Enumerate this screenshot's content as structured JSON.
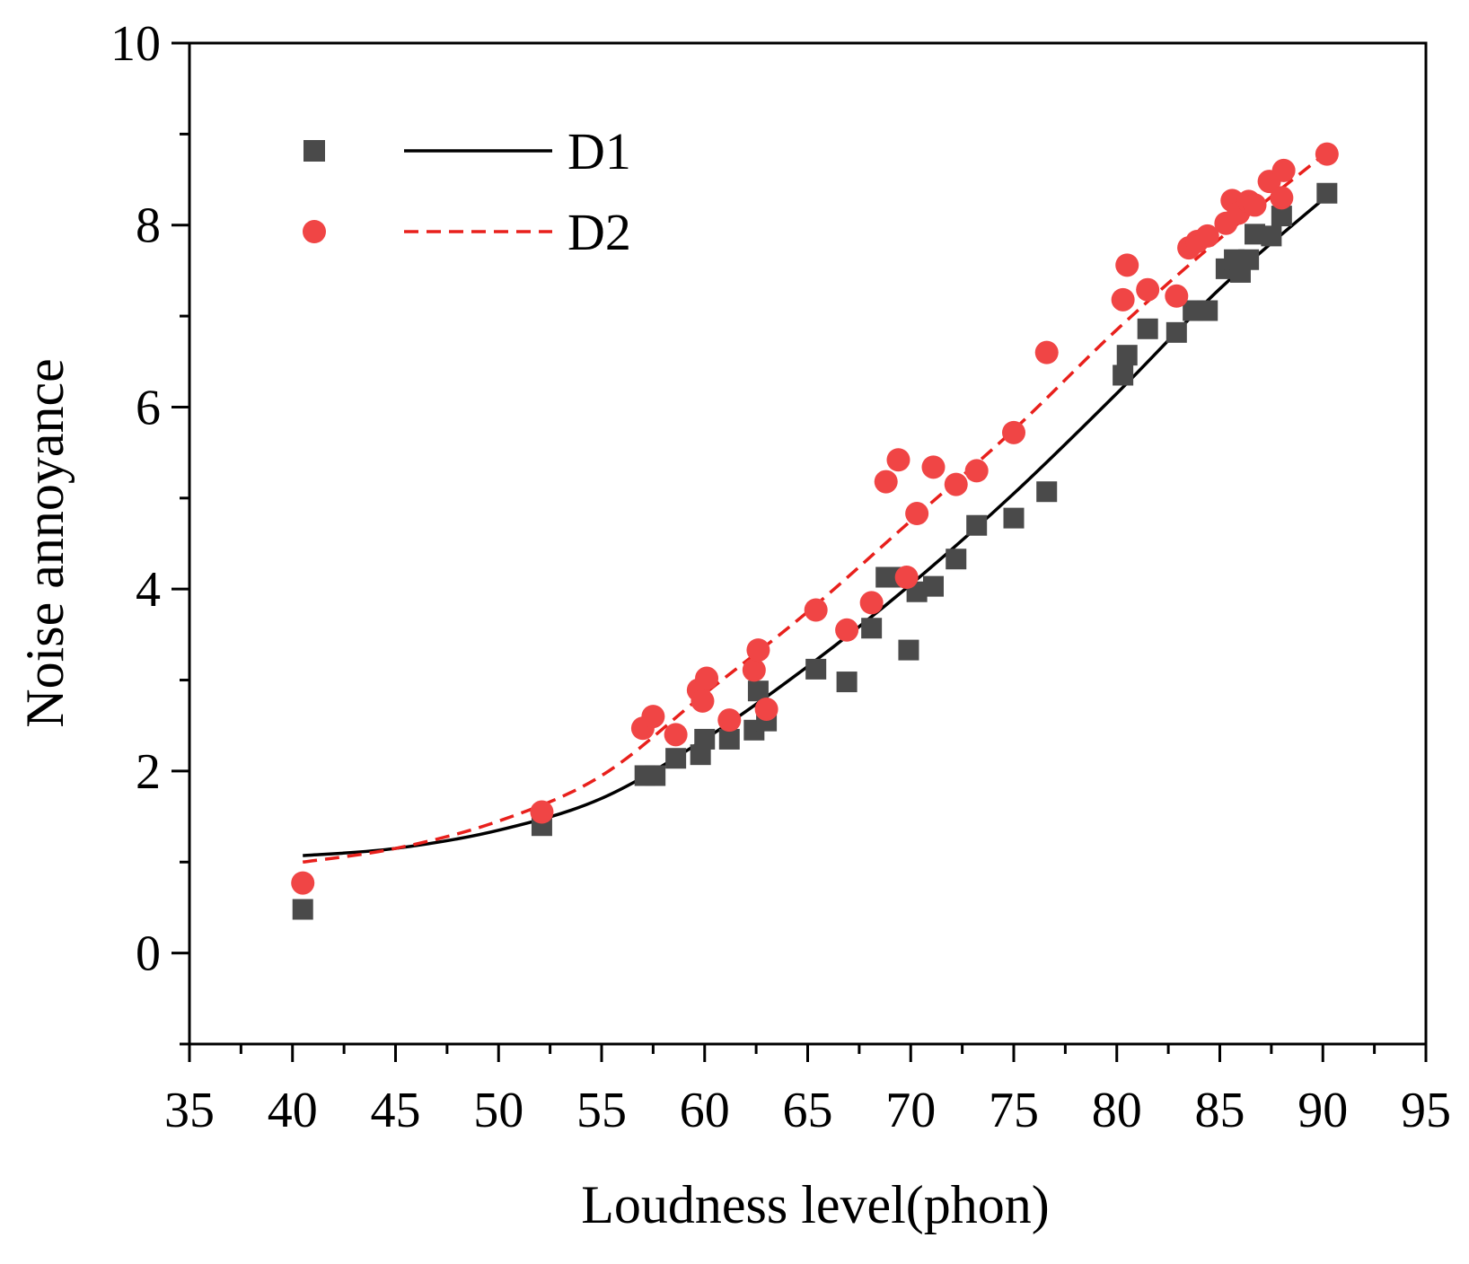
{
  "chart_data": {
    "type": "scatter",
    "title": "",
    "xlabel": "Loudness level(phon)",
    "ylabel": "Noise annoyance",
    "xlim": [
      35,
      95
    ],
    "ylim": [
      -1,
      10
    ],
    "xticks": [
      35,
      40,
      45,
      50,
      55,
      60,
      65,
      70,
      75,
      80,
      85,
      90,
      95
    ],
    "yticks": [
      0,
      2,
      4,
      6,
      8,
      10
    ],
    "legend_position": "top-left",
    "series": [
      {
        "name": "D1",
        "marker": "square",
        "line_style": "solid",
        "color": "#4a4a4a",
        "line_color": "#000000",
        "points": [
          [
            40.5,
            0.48
          ],
          [
            52.1,
            1.4
          ],
          [
            57.1,
            1.95
          ],
          [
            57.6,
            1.95
          ],
          [
            58.6,
            2.14
          ],
          [
            59.8,
            2.18
          ],
          [
            60.0,
            2.35
          ],
          [
            61.2,
            2.35
          ],
          [
            62.4,
            2.45
          ],
          [
            62.6,
            2.88
          ],
          [
            63.0,
            2.55
          ],
          [
            65.4,
            3.12
          ],
          [
            66.9,
            2.98
          ],
          [
            68.1,
            3.57
          ],
          [
            68.8,
            4.13
          ],
          [
            69.4,
            4.13
          ],
          [
            69.9,
            3.33
          ],
          [
            70.3,
            3.97
          ],
          [
            71.1,
            4.03
          ],
          [
            72.2,
            4.33
          ],
          [
            73.2,
            4.7
          ],
          [
            75.0,
            4.78
          ],
          [
            76.6,
            5.07
          ],
          [
            80.3,
            6.35
          ],
          [
            80.5,
            6.57
          ],
          [
            81.5,
            6.86
          ],
          [
            82.9,
            6.82
          ],
          [
            83.7,
            7.06
          ],
          [
            84.4,
            7.06
          ],
          [
            85.3,
            7.52
          ],
          [
            85.7,
            7.62
          ],
          [
            86.0,
            7.48
          ],
          [
            86.4,
            7.62
          ],
          [
            86.7,
            7.9
          ],
          [
            87.5,
            7.88
          ],
          [
            88.0,
            8.1
          ],
          [
            90.2,
            8.35
          ]
        ],
        "fit": {
          "x": [
            40.5,
            45,
            50,
            55,
            60,
            65,
            70,
            75,
            80,
            85,
            90.2
          ],
          "y": [
            1.07,
            1.15,
            1.35,
            1.7,
            2.35,
            3.15,
            4.05,
            5.05,
            6.15,
            7.3,
            8.32
          ]
        }
      },
      {
        "name": "D2",
        "marker": "circle",
        "line_style": "dashed",
        "color": "#f04545",
        "line_color": "#e8201c",
        "points": [
          [
            40.5,
            0.77
          ],
          [
            52.1,
            1.55
          ],
          [
            57.0,
            2.47
          ],
          [
            57.5,
            2.6
          ],
          [
            58.6,
            2.4
          ],
          [
            59.7,
            2.89
          ],
          [
            59.9,
            2.77
          ],
          [
            60.1,
            3.02
          ],
          [
            61.2,
            2.56
          ],
          [
            62.4,
            3.11
          ],
          [
            62.6,
            3.33
          ],
          [
            63.0,
            2.68
          ],
          [
            65.4,
            3.77
          ],
          [
            66.9,
            3.55
          ],
          [
            68.1,
            3.85
          ],
          [
            68.8,
            5.18
          ],
          [
            69.4,
            5.42
          ],
          [
            69.8,
            4.13
          ],
          [
            70.3,
            4.83
          ],
          [
            71.1,
            5.34
          ],
          [
            72.2,
            5.15
          ],
          [
            73.2,
            5.3
          ],
          [
            75.0,
            5.72
          ],
          [
            76.6,
            6.6
          ],
          [
            80.3,
            7.18
          ],
          [
            80.5,
            7.56
          ],
          [
            81.5,
            7.29
          ],
          [
            82.9,
            7.22
          ],
          [
            83.5,
            7.75
          ],
          [
            83.9,
            7.82
          ],
          [
            84.4,
            7.88
          ],
          [
            85.3,
            8.02
          ],
          [
            85.6,
            8.27
          ],
          [
            85.9,
            8.13
          ],
          [
            86.4,
            8.26
          ],
          [
            86.7,
            8.22
          ],
          [
            87.4,
            8.48
          ],
          [
            88.0,
            8.3
          ],
          [
            88.1,
            8.6
          ],
          [
            90.2,
            8.78
          ]
        ],
        "fit": {
          "x": [
            40.5,
            45,
            50,
            55,
            60,
            65,
            70,
            75,
            80,
            85,
            90.2
          ],
          "y": [
            1.0,
            1.15,
            1.45,
            1.95,
            2.85,
            3.75,
            4.75,
            5.75,
            6.85,
            7.85,
            8.8
          ]
        }
      }
    ]
  }
}
